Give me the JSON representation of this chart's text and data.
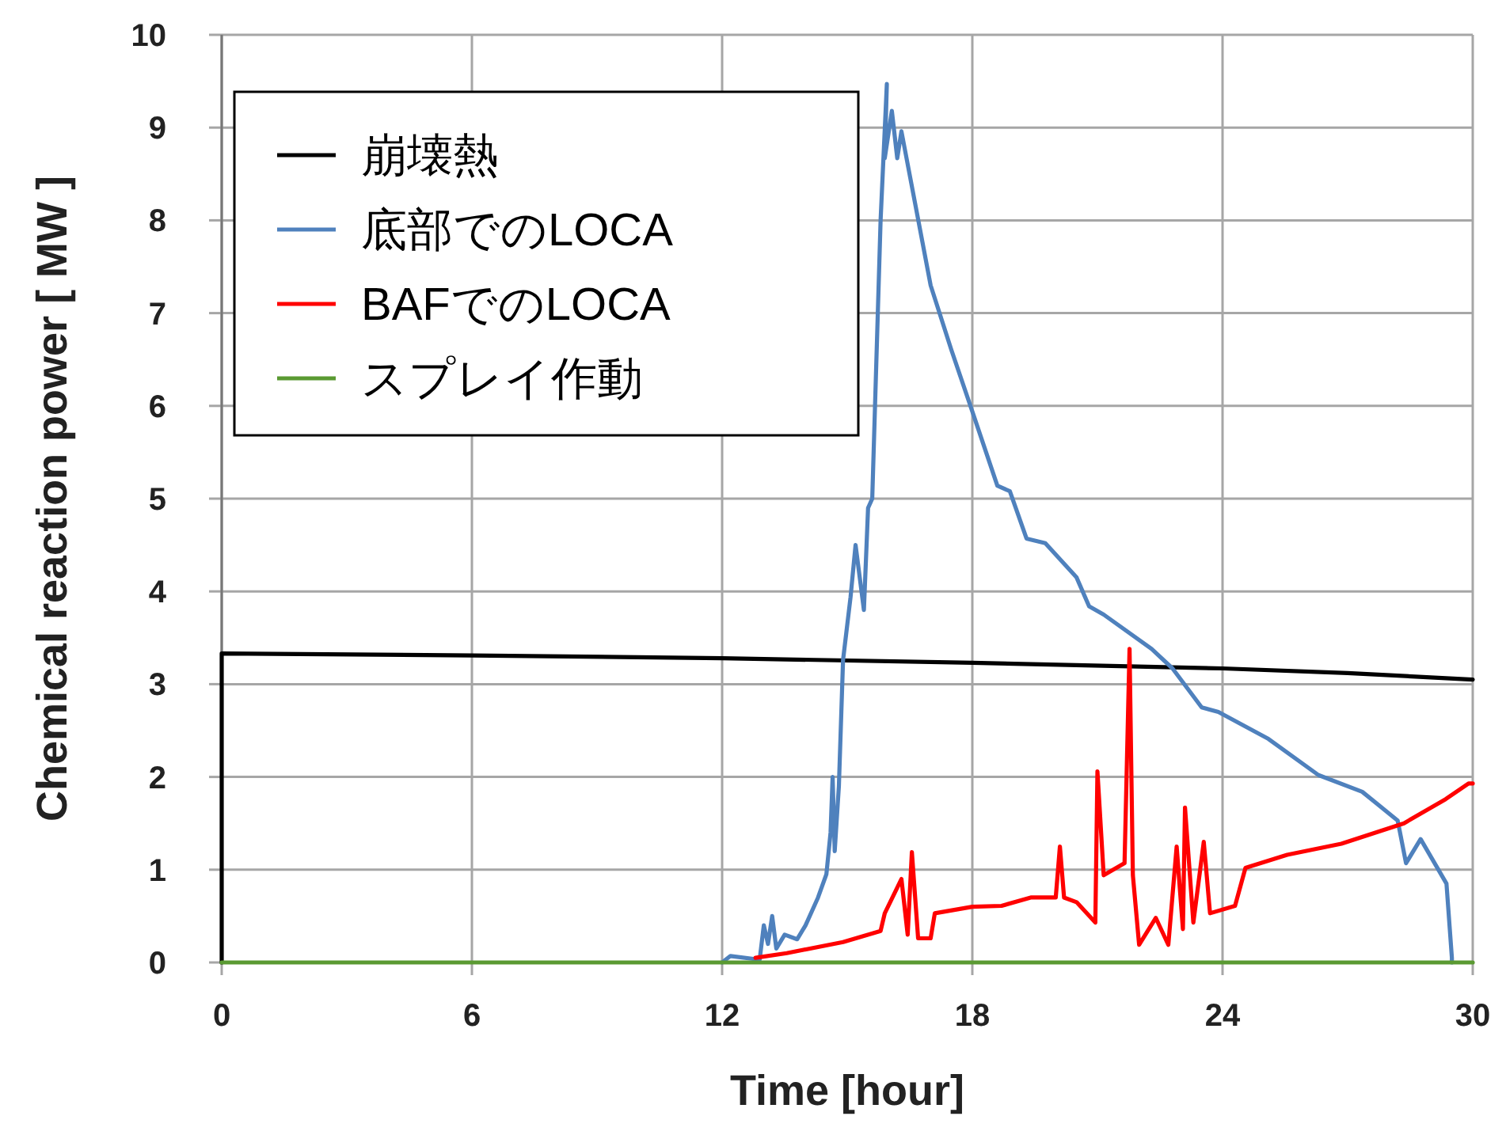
{
  "chart_data": {
    "type": "line",
    "xlabel": "Time [hour]",
    "ylabel": "Chemical reaction power [ MW ]",
    "xlim": [
      0,
      30
    ],
    "ylim": [
      0,
      10
    ],
    "xticks": [
      0,
      6,
      12,
      18,
      24,
      30
    ],
    "yticks": [
      0,
      1,
      2,
      3,
      4,
      5,
      6,
      7,
      8,
      9,
      10
    ],
    "grid": true,
    "legend": "top left",
    "marker": "none",
    "line_style": "solid",
    "series": [
      {
        "name": "崩壊熱",
        "color": "#000000",
        "x": [
          0,
          0,
          6,
          12,
          18,
          24,
          27,
          30
        ],
        "values": [
          0,
          3.33,
          3.31,
          3.28,
          3.23,
          3.17,
          3.12,
          3.05
        ]
      },
      {
        "name": "底部でのLOCA",
        "color": "#4f81bd",
        "x": [
          12.0,
          12.2,
          12.9,
          13.0,
          13.1,
          13.2,
          13.3,
          13.5,
          13.8,
          14.0,
          14.3,
          14.5,
          14.6,
          14.65,
          14.7,
          14.8,
          14.9,
          15.08,
          15.2,
          15.4,
          15.5,
          15.6,
          15.8,
          15.95,
          15.9,
          16.07,
          16.2,
          16.3,
          17.0,
          17.5,
          18.0,
          18.6,
          18.9,
          19.3,
          19.75,
          20.5,
          20.8,
          21.15,
          22.3,
          22.8,
          23.5,
          23.9,
          25.1,
          26.3,
          27.35,
          28.2,
          28.4,
          28.75,
          29.37,
          29.5,
          29.5
        ],
        "values": [
          0.0,
          0.07,
          0.03,
          0.4,
          0.2,
          0.5,
          0.15,
          0.3,
          0.25,
          0.4,
          0.7,
          0.95,
          1.4,
          2.0,
          1.2,
          1.9,
          3.26,
          3.94,
          4.5,
          3.8,
          4.9,
          5.0,
          8.0,
          9.47,
          8.67,
          9.18,
          8.67,
          8.96,
          7.3,
          6.6,
          5.94,
          5.14,
          5.08,
          4.57,
          4.52,
          4.15,
          3.84,
          3.75,
          3.38,
          3.17,
          2.75,
          2.7,
          2.41,
          2.02,
          1.84,
          1.53,
          1.07,
          1.33,
          0.85,
          0.05,
          0
        ]
      },
      {
        "name": "BAFでのLOCA",
        "color": "#ff0000",
        "x": [
          12.8,
          13.55,
          14.9,
          15.8,
          15.9,
          16.3,
          16.45,
          16.55,
          16.7,
          17.0,
          17.1,
          18.0,
          18.7,
          19.4,
          20.0,
          20.1,
          20.2,
          20.5,
          20.95,
          21.0,
          21.15,
          21.65,
          21.77,
          21.85,
          22.0,
          22.4,
          22.7,
          22.9,
          23.05,
          23.1,
          23.3,
          23.55,
          23.7,
          24.3,
          24.55,
          25.55,
          26.85,
          28.35,
          29.35,
          29.9,
          30
        ],
        "values": [
          0.05,
          0.1,
          0.22,
          0.34,
          0.53,
          0.9,
          0.3,
          1.19,
          0.26,
          0.26,
          0.53,
          0.6,
          0.61,
          0.7,
          0.7,
          1.25,
          0.7,
          0.65,
          0.43,
          2.06,
          0.94,
          1.07,
          3.38,
          0.94,
          0.19,
          0.48,
          0.19,
          1.25,
          0.36,
          1.67,
          0.43,
          1.3,
          0.53,
          0.61,
          1.02,
          1.16,
          1.28,
          1.5,
          1.76,
          1.93,
          1.93
        ]
      },
      {
        "name": "スプレイ作動",
        "color": "#5a9a32",
        "x": [
          0,
          30
        ],
        "values": [
          0,
          0
        ]
      }
    ]
  }
}
